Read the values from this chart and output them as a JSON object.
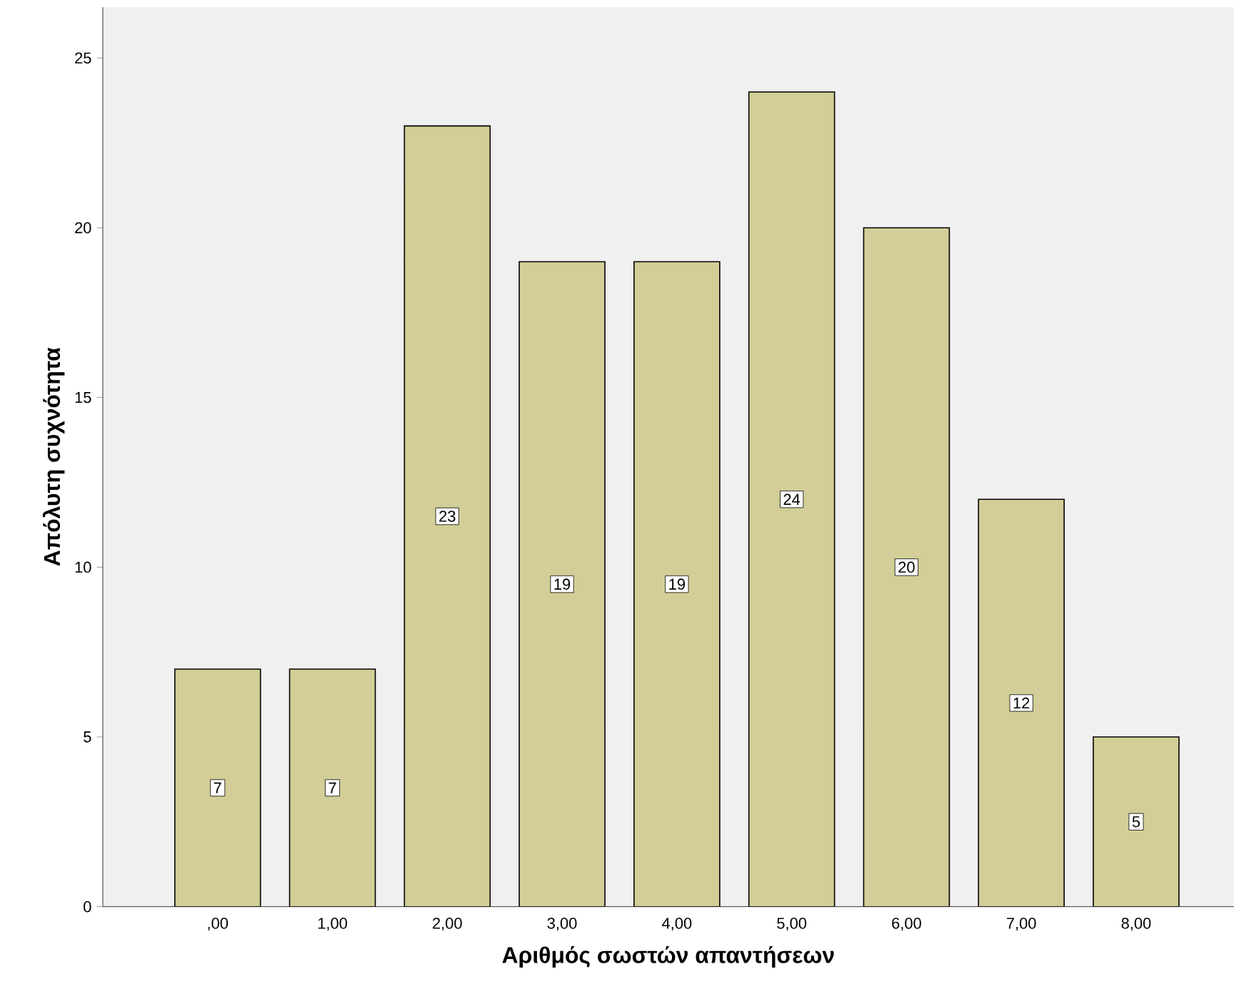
{
  "chart_data": {
    "type": "bar",
    "xlabel": "Αριθμός σωστών απαντήσεων",
    "ylabel": "Απόλυτη συχνότητα",
    "categories": [
      ",00",
      "1,00",
      "2,00",
      "3,00",
      "4,00",
      "5,00",
      "6,00",
      "7,00",
      "8,00"
    ],
    "values": [
      7,
      7,
      23,
      19,
      19,
      24,
      20,
      12,
      5
    ],
    "color": "#d3ce97",
    "ylim": [
      0,
      26.5
    ],
    "yticks": [
      0,
      5,
      10,
      15,
      20,
      25
    ],
    "data_labels": true
  }
}
